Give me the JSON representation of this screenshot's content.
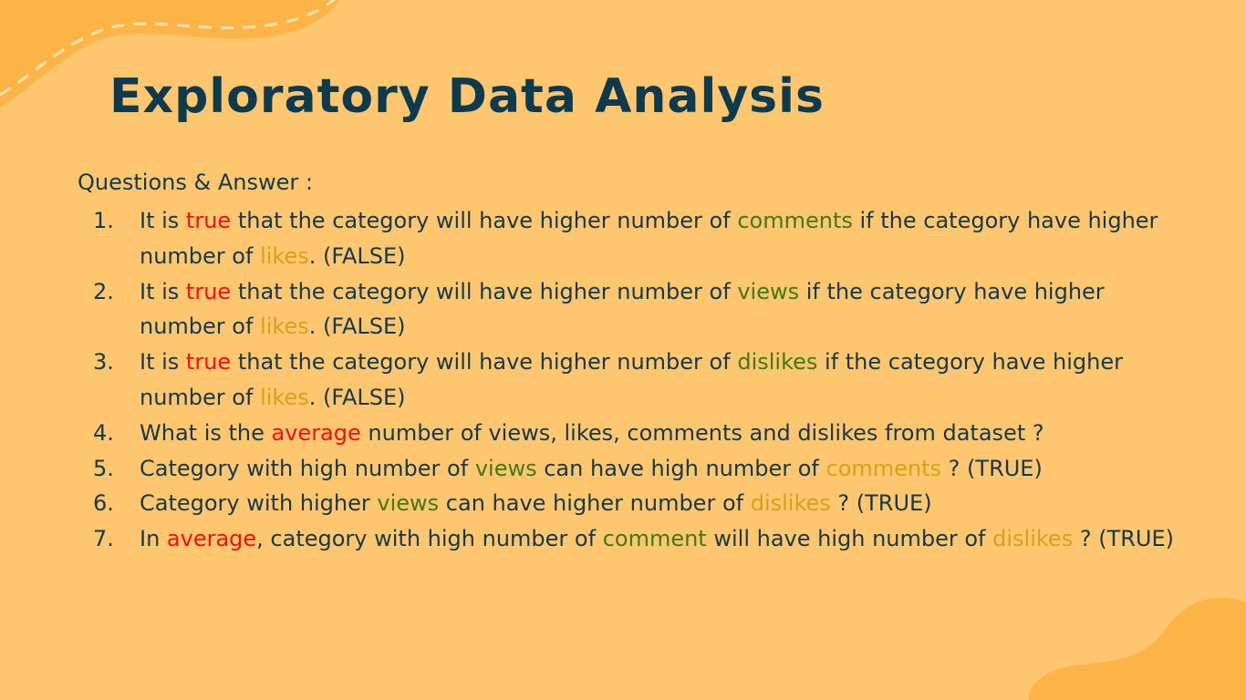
{
  "title": "Exploratory Data Analysis",
  "subtitle": "Questions & Answer :",
  "colors": {
    "background": "#FEC76F",
    "blob": "#FBB445",
    "dashed_line": "#FFE3B3",
    "title": "#0D3A4F",
    "body_text": "#15394A",
    "highlight_red": "#F20E12",
    "highlight_green": "#3F7A16",
    "highlight_gold": "#D4A216"
  },
  "decorations": {
    "top_left_blob": "decorative-blob",
    "bottom_right_blob": "decorative-blob"
  },
  "items": [
    {
      "number": "1.",
      "segments": [
        {
          "text": "It is ",
          "color": "plain"
        },
        {
          "text": "true",
          "color": "red"
        },
        {
          "text": " that the category will have higher number of ",
          "color": "plain"
        },
        {
          "text": "comments",
          "color": "green"
        },
        {
          "text": " if the category have higher number of ",
          "color": "plain"
        },
        {
          "text": "likes",
          "color": "gold"
        },
        {
          "text": ". (FALSE)",
          "color": "plain"
        }
      ]
    },
    {
      "number": "2.",
      "segments": [
        {
          "text": "It is ",
          "color": "plain"
        },
        {
          "text": "true",
          "color": "red"
        },
        {
          "text": " that the category will have higher number of ",
          "color": "plain"
        },
        {
          "text": "views",
          "color": "green"
        },
        {
          "text": " if the category have higher number of ",
          "color": "plain"
        },
        {
          "text": "likes",
          "color": "gold"
        },
        {
          "text": ". (FALSE)",
          "color": "plain"
        }
      ]
    },
    {
      "number": "3.",
      "segments": [
        {
          "text": "It is ",
          "color": "plain"
        },
        {
          "text": "true",
          "color": "red"
        },
        {
          "text": " that the category will have higher number of ",
          "color": "plain"
        },
        {
          "text": "dislikes",
          "color": "green"
        },
        {
          "text": " if the category have higher number of ",
          "color": "plain"
        },
        {
          "text": "likes",
          "color": "gold"
        },
        {
          "text": ". (FALSE)",
          "color": "plain"
        }
      ]
    },
    {
      "number": "4.",
      "single": true,
      "segments": [
        {
          "text": " What is the ",
          "color": "plain"
        },
        {
          "text": "average",
          "color": "red"
        },
        {
          "text": " number of views, likes, comments and dislikes from dataset ?",
          "color": "plain"
        }
      ]
    },
    {
      "number": "5.",
      "single": true,
      "segments": [
        {
          "text": "Category with high number of ",
          "color": "plain"
        },
        {
          "text": "views",
          "color": "green"
        },
        {
          "text": " can have high number of ",
          "color": "plain"
        },
        {
          "text": "comments",
          "color": "gold"
        },
        {
          "text": " ? (TRUE)",
          "color": "plain"
        }
      ]
    },
    {
      "number": "6.",
      "single": true,
      "segments": [
        {
          "text": "Category with higher ",
          "color": "plain"
        },
        {
          "text": "views",
          "color": "green"
        },
        {
          "text": " can have higher number of ",
          "color": "plain"
        },
        {
          "text": "dislikes",
          "color": "gold"
        },
        {
          "text": " ? (TRUE)",
          "color": "plain"
        }
      ]
    },
    {
      "number": "7.",
      "segments": [
        {
          "text": "In ",
          "color": "plain"
        },
        {
          "text": "average",
          "color": "red"
        },
        {
          "text": ", category with high number of ",
          "color": "plain"
        },
        {
          "text": "comment",
          "color": "green"
        },
        {
          "text": " will have high number of ",
          "color": "plain"
        },
        {
          "text": "dislikes",
          "color": "gold"
        },
        {
          "text": " ? (TRUE)",
          "color": "plain"
        }
      ]
    }
  ]
}
